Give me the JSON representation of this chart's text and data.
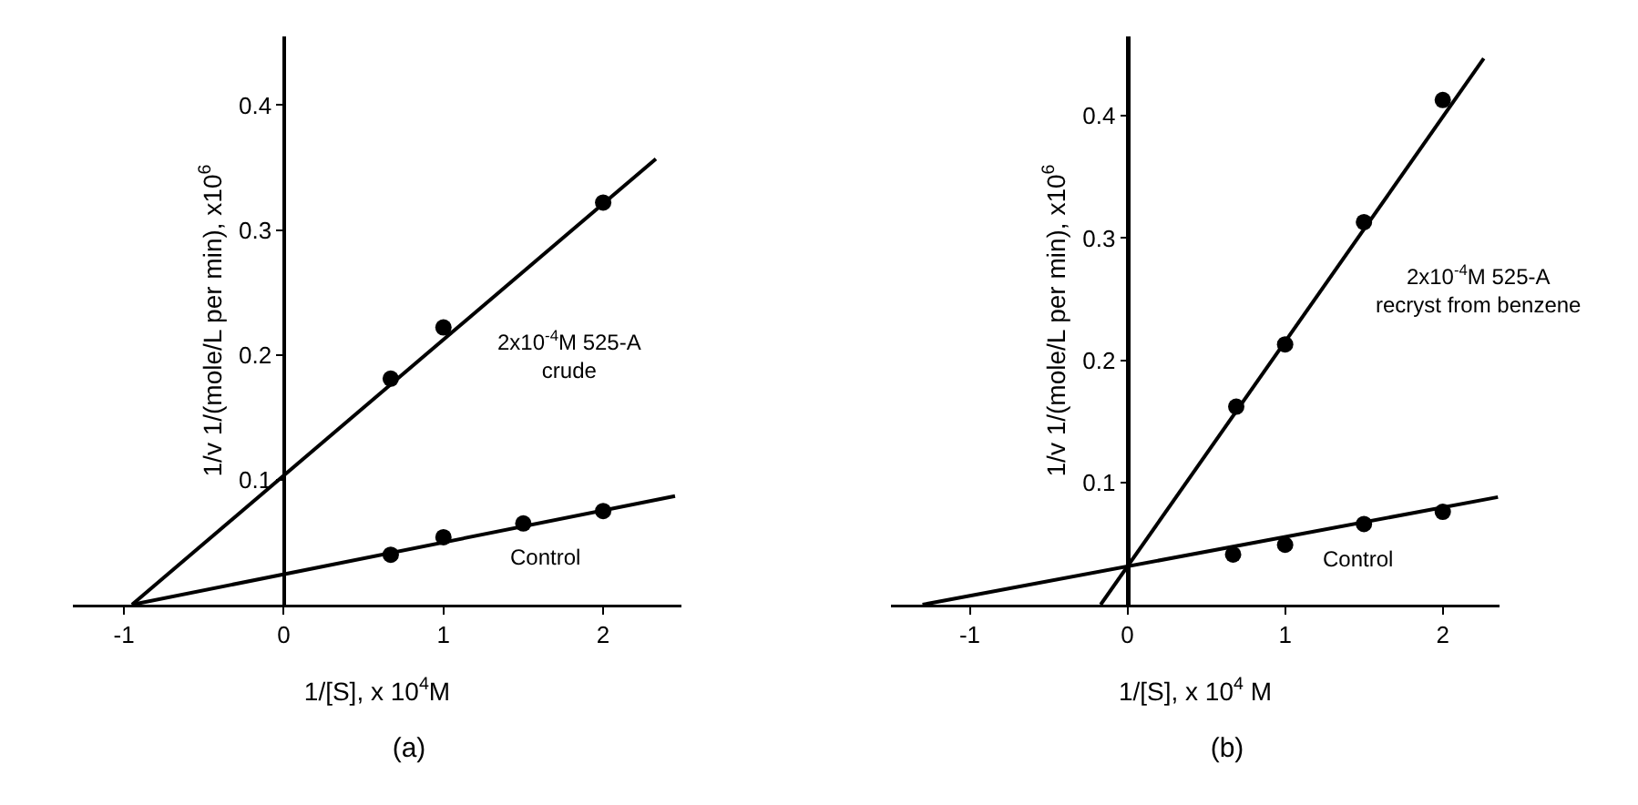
{
  "chart_data": [
    {
      "type": "line",
      "title": "(a)",
      "xlabel": "1/[S], x 10$^{4}$M",
      "ylabel": "1/v 1/(mole/L per min), x10$^{6}$",
      "xlim": [
        -1.32,
        2.49
      ],
      "ylim": [
        0,
        0.455
      ],
      "xticks": [
        -1,
        0,
        1,
        2
      ],
      "yticks": [
        0.1,
        0.2,
        0.3,
        0.4
      ],
      "grid": false,
      "legend": false,
      "line_style": "solid",
      "series": [
        {
          "name": "2x10$^{-4}$M 525-A\ncrude",
          "color": "#000000",
          "marker": "none",
          "x": [
            -0.95,
            2.33
          ],
          "values": [
            0,
            0.357
          ]
        },
        {
          "color": "#000000",
          "type": "scatter",
          "marker": "circle",
          "x": [
            0.67,
            1,
            2
          ],
          "values": [
            0.181,
            0.222,
            0.322
          ]
        },
        {
          "name": "Control",
          "color": "#000000",
          "marker": "none",
          "x": [
            -0.95,
            2.45
          ],
          "values": [
            0,
            0.087
          ]
        },
        {
          "color": "#000000",
          "type": "scatter",
          "marker": "circle",
          "x": [
            0.67,
            1,
            1.5,
            2
          ],
          "values": [
            0.04,
            0.054,
            0.065,
            0.075
          ]
        }
      ]
    },
    {
      "type": "line",
      "title": "(b)",
      "xlabel": "1/[S], x 10$^{4}$ M",
      "ylabel": "1/v 1/(mole/L per min), x10$^{6}$",
      "xlim": [
        -1.5,
        2.36
      ],
      "ylim": [
        0,
        0.465
      ],
      "xticks": [
        -1,
        0,
        1,
        2
      ],
      "yticks": [
        0.1,
        0.2,
        0.3,
        0.4
      ],
      "grid": false,
      "legend": false,
      "line_style": "solid",
      "series": [
        {
          "name": "2x10$^{-4}$M 525-A\nrecryst from benzene",
          "color": "#000000",
          "marker": "none",
          "x": [
            -0.17,
            2.26
          ],
          "values": [
            0,
            0.447
          ]
        },
        {
          "color": "#000000",
          "type": "scatter",
          "marker": "circle",
          "x": [
            0.69,
            1,
            1.5,
            2
          ],
          "values": [
            0.162,
            0.213,
            0.313,
            0.413
          ]
        },
        {
          "name": "Control",
          "color": "#000000",
          "marker": "none",
          "x": [
            -1.3,
            2.35
          ],
          "values": [
            0,
            0.088
          ]
        },
        {
          "color": "#000000",
          "type": "scatter",
          "marker": "circle",
          "x": [
            0.67,
            1,
            1.5,
            2
          ],
          "values": [
            0.041,
            0.049,
            0.066,
            0.076
          ]
        }
      ]
    }
  ]
}
